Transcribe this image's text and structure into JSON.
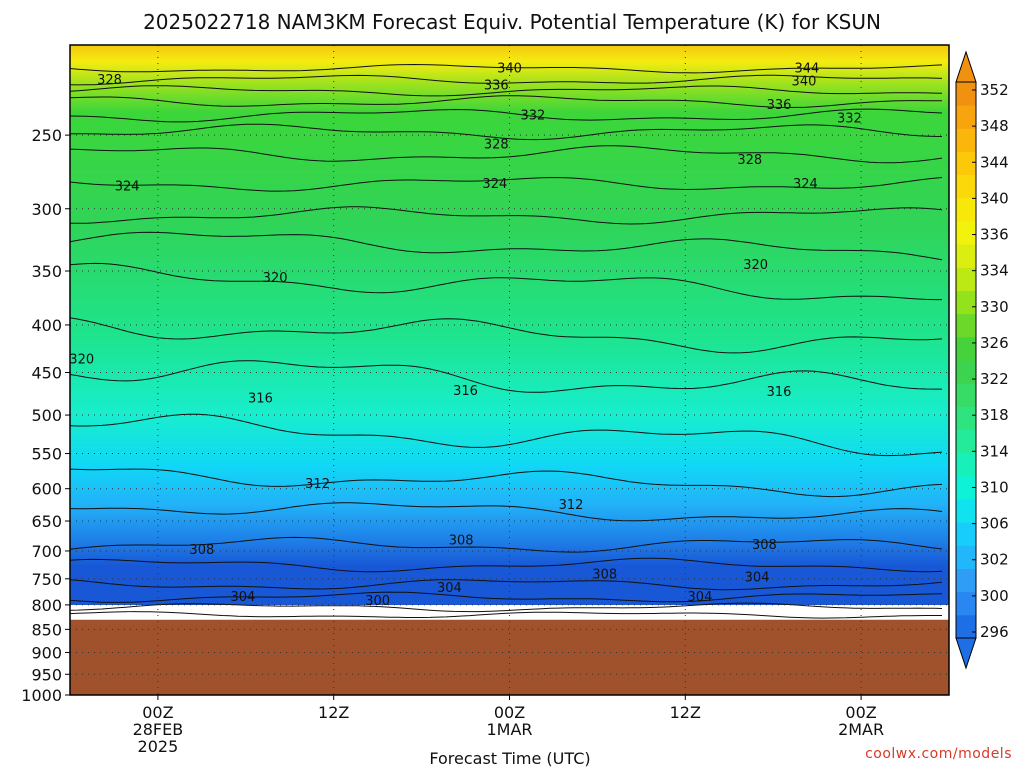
{
  "chart_data": {
    "type": "heatmap",
    "title": "2025022718 NAM3KM Forecast Equiv. Potential Temperature (K) for KSUN",
    "xlabel": "Forecast Time (UTC)",
    "ylabel": "",
    "y_axis": {
      "scale": "log",
      "inverted": true,
      "ylim": [
        1000,
        200
      ],
      "ticks": [
        250,
        300,
        350,
        400,
        450,
        500,
        550,
        600,
        650,
        700,
        750,
        800,
        850,
        900,
        950,
        1000
      ],
      "grid": "dotted"
    },
    "x_axis": {
      "range_hours": [
        -6,
        54
      ],
      "ticks": [
        {
          "hour": 0,
          "lines": [
            "00Z",
            "28FEB",
            "2025"
          ]
        },
        {
          "hour": 12,
          "lines": [
            "12Z"
          ]
        },
        {
          "hour": 24,
          "lines": [
            "00Z",
            "1MAR"
          ]
        },
        {
          "hour": 36,
          "lines": [
            "12Z"
          ]
        },
        {
          "hour": 48,
          "lines": [
            "00Z",
            "2MAR"
          ]
        }
      ],
      "grid": "dotted"
    },
    "surface_pressure_hpa": 830,
    "surface_color": "#a0522d",
    "colorbar": {
      "levels": [
        296,
        300,
        302,
        304,
        306,
        308,
        310,
        312,
        314,
        316,
        318,
        320,
        322,
        324,
        326,
        328,
        330,
        332,
        334,
        336,
        338,
        340,
        342,
        344,
        346,
        348,
        350,
        352
      ],
      "labels": [
        352,
        348,
        344,
        340,
        336,
        334,
        330,
        326,
        322,
        318,
        314,
        310,
        306,
        302,
        300,
        296
      ],
      "colors": [
        "#1e6fe6",
        "#2a86f0",
        "#2f9cf6",
        "#22b6fb",
        "#16cdfb",
        "#10e2f0",
        "#0ef2d8",
        "#17f0b8",
        "#24eb9a",
        "#2ee47e",
        "#36dc66",
        "#3cd44e",
        "#46d23a",
        "#6bd82a",
        "#93e21c",
        "#bce814",
        "#dcee10",
        "#f2f20c",
        "#f8e80a",
        "#fad80a",
        "#fbc80a",
        "#fbb60b",
        "#f8a40d",
        "#f0920f"
      ]
    },
    "contour_labels": [
      {
        "value": "340",
        "hour": 24.0,
        "p": 212
      },
      {
        "value": "344",
        "hour": 44.3,
        "p": 212
      },
      {
        "value": "328",
        "hour": -3.3,
        "p": 218
      },
      {
        "value": "336",
        "hour": 23.1,
        "p": 221
      },
      {
        "value": "340",
        "hour": 44.1,
        "p": 219
      },
      {
        "value": "336",
        "hour": 42.4,
        "p": 232
      },
      {
        "value": "332",
        "hour": 25.6,
        "p": 238
      },
      {
        "value": "332",
        "hour": 47.2,
        "p": 240
      },
      {
        "value": "328",
        "hour": 23.1,
        "p": 256
      },
      {
        "value": "328",
        "hour": 40.4,
        "p": 266
      },
      {
        "value": "324",
        "hour": -2.1,
        "p": 284
      },
      {
        "value": "324",
        "hour": 23.0,
        "p": 282
      },
      {
        "value": "324",
        "hour": 44.2,
        "p": 282
      },
      {
        "value": "320",
        "hour": 8.0,
        "p": 356
      },
      {
        "value": "320",
        "hour": 40.8,
        "p": 345
      },
      {
        "value": "320",
        "hour": -5.2,
        "p": 436
      },
      {
        "value": "316",
        "hour": 7.0,
        "p": 480
      },
      {
        "value": "316",
        "hour": 21.0,
        "p": 471
      },
      {
        "value": "316",
        "hour": 42.4,
        "p": 472
      },
      {
        "value": "312",
        "hour": 10.9,
        "p": 593
      },
      {
        "value": "312",
        "hour": 28.2,
        "p": 625
      },
      {
        "value": "308",
        "hour": 3.0,
        "p": 698
      },
      {
        "value": "308",
        "hour": 20.7,
        "p": 682
      },
      {
        "value": "308",
        "hour": 41.4,
        "p": 690
      },
      {
        "value": "308",
        "hour": 30.5,
        "p": 742
      },
      {
        "value": "304",
        "hour": 40.9,
        "p": 748
      },
      {
        "value": "304",
        "hour": 5.8,
        "p": 785
      },
      {
        "value": "304",
        "hour": 19.9,
        "p": 767
      },
      {
        "value": "304",
        "hour": 37.0,
        "p": 785
      },
      {
        "value": "300",
        "hour": 15.0,
        "p": 792
      }
    ],
    "watermark": "coolwx.com/models"
  }
}
